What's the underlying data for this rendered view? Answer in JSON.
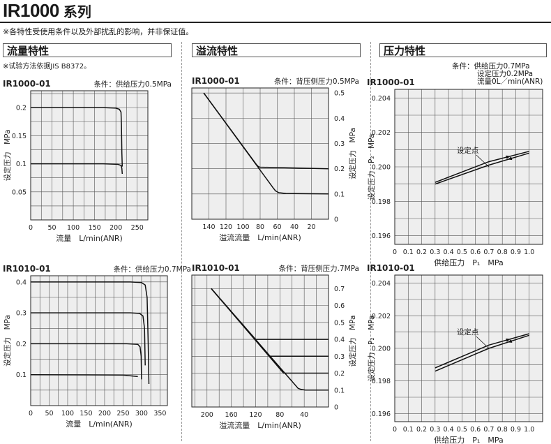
{
  "header": {
    "model": "IR1000",
    "series_word": "系列",
    "note": "※各特性受使用条件以及外部扰乱的影响，并非保证值。"
  },
  "sections": {
    "flow": "流量特性",
    "relief": "溢流特性",
    "pressure": "压力特性"
  },
  "flow_note": "※试验方法依据JIS B8372。",
  "pressure_conditions": [
    "条件：供给压力0.7MPa",
    "设定压力0.2MPa",
    "流量0L／min(ANR)"
  ],
  "chart_data": [
    {
      "id": "flow_ir1000",
      "type": "line",
      "title": "IR1000-01",
      "condition": "条件：供给压力0.5MPa",
      "xlabel": "流量　L/min(ANR)",
      "ylabel": "设定压力　MPa",
      "xlim": [
        0,
        275
      ],
      "ylim": [
        0,
        0.23
      ],
      "xticks": [
        0,
        50,
        100,
        150,
        200,
        250
      ],
      "yticks": [
        0.05,
        0.1,
        0.15,
        0.2
      ],
      "ytick_labels": [
        "0.05",
        "0.1",
        "0.15",
        "0.2"
      ],
      "grid": true,
      "series": [
        {
          "x": [
            0,
            170,
            200,
            208,
            212,
            213,
            214,
            215
          ],
          "y": [
            0.2,
            0.2,
            0.199,
            0.197,
            0.192,
            0.17,
            0.12,
            0.095
          ]
        },
        {
          "x": [
            0,
            170,
            205,
            212,
            214,
            215
          ],
          "y": [
            0.1,
            0.1,
            0.099,
            0.097,
            0.092,
            0.082
          ]
        }
      ]
    },
    {
      "id": "relief_ir1000",
      "type": "line",
      "title": "IR1000-01",
      "condition": "条件：背压侧压力0.5MPa",
      "xlabel": "溢流流量　L/min(ANR)",
      "ylabel": "设定压力　MPa",
      "axis_side": "right",
      "x_reversed": true,
      "xlim": [
        0,
        160
      ],
      "ylim": [
        0,
        0.52
      ],
      "xticks": [
        140,
        120,
        100,
        80,
        60,
        40,
        20
      ],
      "yticks": [
        0,
        0.1,
        0.2,
        0.3,
        0.4,
        0.5
      ],
      "ytick_labels": [
        "0",
        "0.1",
        "0.2",
        "0.3",
        "0.4",
        "0.5"
      ],
      "grid": true,
      "series": [
        {
          "x": [
            146,
            84,
            82,
            80,
            0
          ],
          "y": [
            0.5,
            0.215,
            0.208,
            0.206,
            0.2
          ]
        },
        {
          "x": [
            146,
            65,
            62,
            58,
            50,
            0
          ],
          "y": [
            0.5,
            0.125,
            0.112,
            0.105,
            0.102,
            0.1
          ]
        }
      ]
    },
    {
      "id": "pressure_ir1000",
      "type": "line",
      "title": "IR1000-01",
      "xlabel": "供给压力　P₁　MPa",
      "ylabel": "设定压力　P₂　MPa",
      "xlim": [
        0,
        1.1
      ],
      "ylim": [
        0.1955,
        0.2045
      ],
      "xticks": [
        0,
        0.1,
        0.2,
        0.3,
        0.4,
        0.5,
        0.6,
        0.7,
        0.8,
        0.9,
        1.0
      ],
      "xtick_labels": [
        "0",
        "0.1",
        "0.2",
        "0.3",
        "0.4",
        "0.5",
        "0.6",
        "0.7",
        "0.8",
        "0.9",
        "1.0"
      ],
      "yticks": [
        0.196,
        0.198,
        0.2,
        0.202,
        0.204
      ],
      "ytick_labels": [
        "0.196",
        "0.198",
        "0.200",
        "0.202",
        "0.204"
      ],
      "grid": true,
      "annotation": "设定点",
      "setpoint": [
        0.7,
        0.2
      ],
      "series": [
        {
          "x": [
            0.3,
            0.7,
            1.0
          ],
          "y": [
            0.1991,
            0.2003,
            0.2009
          ]
        },
        {
          "x": [
            0.3,
            0.7,
            1.0
          ],
          "y": [
            0.199,
            0.2001,
            0.2008
          ]
        }
      ]
    },
    {
      "id": "flow_ir1010",
      "type": "line",
      "title": "IR1010-01",
      "condition": "条件：供给压力0.7MPa",
      "xlabel": "流量　L/min(ANR)",
      "ylabel": "设定压力　MPa",
      "xlim": [
        0,
        370
      ],
      "ylim": [
        0,
        0.42
      ],
      "xticks": [
        0,
        50,
        100,
        150,
        200,
        250,
        300,
        350
      ],
      "yticks": [
        0.1,
        0.2,
        0.3,
        0.4
      ],
      "ytick_labels": [
        "0.1",
        "0.2",
        "0.3",
        "0.4"
      ],
      "grid": true,
      "series": [
        {
          "x": [
            0,
            270,
            300,
            310,
            315,
            318,
            320
          ],
          "y": [
            0.4,
            0.4,
            0.398,
            0.39,
            0.35,
            0.2,
            0.07
          ]
        },
        {
          "x": [
            0,
            270,
            295,
            304,
            308,
            310
          ],
          "y": [
            0.3,
            0.3,
            0.298,
            0.29,
            0.25,
            0.13
          ]
        },
        {
          "x": [
            0,
            260,
            290,
            296,
            299,
            300
          ],
          "y": [
            0.2,
            0.2,
            0.198,
            0.19,
            0.16,
            0.085
          ]
        },
        {
          "x": [
            0,
            250,
            290
          ],
          "y": [
            0.1,
            0.099,
            0.094
          ]
        }
      ]
    },
    {
      "id": "relief_ir1010",
      "type": "line",
      "title": "IR1010-01",
      "condition": "条件：背压侧压力.7MPa",
      "xlabel": "溢流流量　L/min(ANR)",
      "ylabel": "设定压力　MPa",
      "axis_side": "right",
      "x_reversed": true,
      "xlim": [
        0,
        225
      ],
      "ylim": [
        0,
        0.78
      ],
      "xticks": [
        200,
        160,
        120,
        80,
        40
      ],
      "yticks": [
        0,
        0.1,
        0.2,
        0.3,
        0.4,
        0.5,
        0.6,
        0.7
      ],
      "ytick_labels": [
        "0",
        "0.1",
        "0.2",
        "0.3",
        "0.4",
        "0.5",
        "0.6",
        "0.7"
      ],
      "grid": true,
      "series": [
        {
          "x": [
            193,
            120,
            0
          ],
          "y": [
            0.7,
            0.4,
            0.4
          ]
        },
        {
          "x": [
            193,
            97,
            0
          ],
          "y": [
            0.7,
            0.3,
            0.3
          ]
        },
        {
          "x": [
            193,
            74,
            0
          ],
          "y": [
            0.7,
            0.2,
            0.2
          ]
        },
        {
          "x": [
            193,
            50,
            45,
            38,
            0
          ],
          "y": [
            0.7,
            0.11,
            0.104,
            0.1,
            0.1
          ]
        }
      ]
    },
    {
      "id": "pressure_ir1010",
      "type": "line",
      "title": "IR1010-01",
      "xlabel": "供给压力　P₁　MPa",
      "ylabel": "设定压力　P₂　MPa",
      "xlim": [
        0,
        1.1
      ],
      "ylim": [
        0.1955,
        0.2045
      ],
      "xticks": [
        0,
        0.1,
        0.2,
        0.3,
        0.4,
        0.5,
        0.6,
        0.7,
        0.8,
        0.9,
        1.0
      ],
      "xtick_labels": [
        "0",
        "0.1",
        "0.2",
        "0.3",
        "0.4",
        "0.5",
        "0.6",
        "0.7",
        "0.8",
        "0.9",
        "1.0"
      ],
      "yticks": [
        0.196,
        0.198,
        0.2,
        0.202,
        0.204
      ],
      "ytick_labels": [
        "0.196",
        "0.198",
        "0.200",
        "0.202",
        "0.204"
      ],
      "grid": true,
      "annotation": "设定点",
      "setpoint": [
        0.7,
        0.2
      ],
      "series": [
        {
          "x": [
            0.3,
            0.7,
            1.0
          ],
          "y": [
            0.1988,
            0.2002,
            0.2009
          ]
        },
        {
          "x": [
            0.3,
            0.7,
            1.0
          ],
          "y": [
            0.1986,
            0.2,
            0.2008
          ]
        }
      ]
    }
  ]
}
